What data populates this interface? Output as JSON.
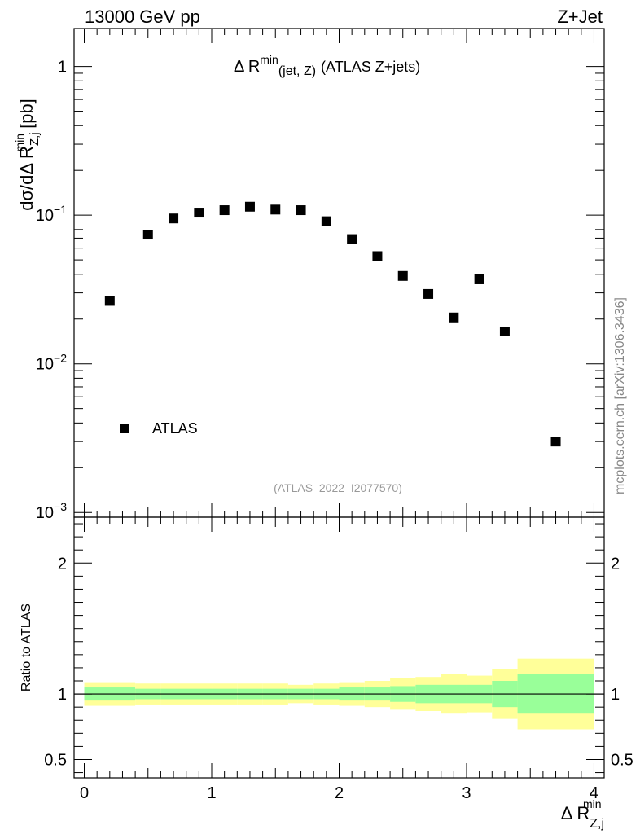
{
  "header": {
    "left": "13000 GeV pp",
    "right": "Z+Jet"
  },
  "side_label": "mcplots.cern.ch [arXiv:1306.3436]",
  "analysis_id": "(ATLAS_2022_I2077570)",
  "chart_data": [
    {
      "type": "scatter",
      "panel": "main",
      "title_prefix": "Δ R",
      "title_sup": "min",
      "title_sub": "(jet, Z)",
      "title_suffix": "(ATLAS Z+jets)",
      "ylabel_main": "dσ/dΔ R",
      "ylabel_sub": "Z,j",
      "ylabel_sup": "min",
      "ylabel_units": "[pb]",
      "yscale": "log",
      "ylim": [
        0.00093,
        1.8
      ],
      "xlim": [
        -0.08,
        4.08
      ],
      "yticks": [
        {
          "value": 1,
          "base": "1",
          "exp": ""
        },
        {
          "value": 0.1,
          "base": "10",
          "exp": "−1"
        },
        {
          "value": 0.01,
          "base": "10",
          "exp": "−2"
        },
        {
          "value": 0.001,
          "base": "10",
          "exp": "−3"
        }
      ],
      "legend": {
        "label": "ATLAS",
        "position": "lower-left"
      },
      "series": [
        {
          "name": "ATLAS",
          "x": [
            0.2,
            0.5,
            0.7,
            0.9,
            1.1,
            1.3,
            1.5,
            1.7,
            1.9,
            2.1,
            2.3,
            2.5,
            2.7,
            2.9,
            3.1,
            3.3,
            3.7
          ],
          "y": [
            0.0265,
            0.074,
            0.095,
            0.104,
            0.108,
            0.114,
            0.109,
            0.108,
            0.091,
            0.069,
            0.053,
            0.039,
            0.0295,
            0.0205,
            0.037,
            0.0165,
            0.003
          ]
        }
      ]
    },
    {
      "type": "area",
      "panel": "ratio",
      "ylabel": "Ratio to ATLAS",
      "xlabel_main": "Δ R",
      "xlabel_sub": "Z,j",
      "xlabel_sup": "min",
      "xlim": [
        -0.08,
        4.08
      ],
      "ylim": [
        0.36,
        2.35
      ],
      "xticks": [
        {
          "value": 0,
          "label": "0"
        },
        {
          "value": 1,
          "label": "1"
        },
        {
          "value": 2,
          "label": "2"
        },
        {
          "value": 3,
          "label": "3"
        },
        {
          "value": 4,
          "label": "4"
        }
      ],
      "yticks": [
        {
          "value": 2,
          "label": "2"
        },
        {
          "value": 1,
          "label": "1"
        },
        {
          "value": 0.5,
          "label": "0.5"
        }
      ],
      "reference_line": 1,
      "bins": [
        {
          "lo": 0.0,
          "hi": 0.4,
          "inner": [
            0.95,
            1.05
          ],
          "outer": [
            0.91,
            1.09
          ]
        },
        {
          "lo": 0.4,
          "hi": 0.6,
          "inner": [
            0.96,
            1.04
          ],
          "outer": [
            0.92,
            1.08
          ]
        },
        {
          "lo": 0.6,
          "hi": 0.8,
          "inner": [
            0.96,
            1.04
          ],
          "outer": [
            0.92,
            1.08
          ]
        },
        {
          "lo": 0.8,
          "hi": 1.0,
          "inner": [
            0.96,
            1.04
          ],
          "outer": [
            0.92,
            1.08
          ]
        },
        {
          "lo": 1.0,
          "hi": 1.2,
          "inner": [
            0.96,
            1.04
          ],
          "outer": [
            0.92,
            1.08
          ]
        },
        {
          "lo": 1.2,
          "hi": 1.4,
          "inner": [
            0.96,
            1.04
          ],
          "outer": [
            0.92,
            1.08
          ]
        },
        {
          "lo": 1.4,
          "hi": 1.6,
          "inner": [
            0.96,
            1.04
          ],
          "outer": [
            0.92,
            1.08
          ]
        },
        {
          "lo": 1.6,
          "hi": 1.8,
          "inner": [
            0.96,
            1.04
          ],
          "outer": [
            0.93,
            1.07
          ]
        },
        {
          "lo": 1.8,
          "hi": 2.0,
          "inner": [
            0.96,
            1.04
          ],
          "outer": [
            0.92,
            1.08
          ]
        },
        {
          "lo": 2.0,
          "hi": 2.2,
          "inner": [
            0.95,
            1.05
          ],
          "outer": [
            0.91,
            1.09
          ]
        },
        {
          "lo": 2.2,
          "hi": 2.4,
          "inner": [
            0.95,
            1.05
          ],
          "outer": [
            0.9,
            1.1
          ]
        },
        {
          "lo": 2.4,
          "hi": 2.6,
          "inner": [
            0.94,
            1.06
          ],
          "outer": [
            0.88,
            1.12
          ]
        },
        {
          "lo": 2.6,
          "hi": 2.8,
          "inner": [
            0.93,
            1.07
          ],
          "outer": [
            0.87,
            1.13
          ]
        },
        {
          "lo": 2.8,
          "hi": 3.0,
          "inner": [
            0.93,
            1.07
          ],
          "outer": [
            0.85,
            1.15
          ]
        },
        {
          "lo": 3.0,
          "hi": 3.2,
          "inner": [
            0.93,
            1.07
          ],
          "outer": [
            0.86,
            1.14
          ]
        },
        {
          "lo": 3.2,
          "hi": 3.4,
          "inner": [
            0.9,
            1.1
          ],
          "outer": [
            0.81,
            1.19
          ]
        },
        {
          "lo": 3.4,
          "hi": 4.0,
          "inner": [
            0.85,
            1.15
          ],
          "outer": [
            0.73,
            1.27
          ]
        }
      ]
    }
  ],
  "colors": {
    "inner_band": "#99ff99",
    "outer_band": "#ffff99",
    "marker": "#000000",
    "reference_line": "#000000",
    "analysis_text": "#999999",
    "side_text": "#888888"
  }
}
